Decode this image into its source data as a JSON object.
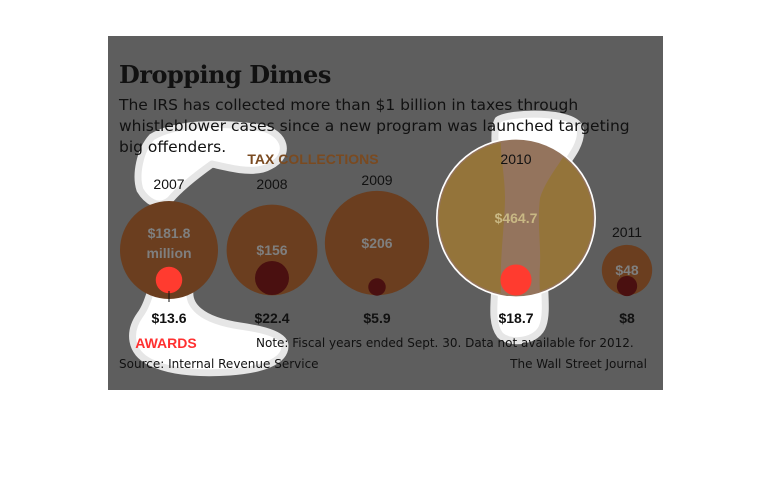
{
  "title": "Dropping Dimes",
  "subtitle": "The IRS has collected more than $1 billion in taxes through whistleblower cases since a new program was launched targeting big offenders.",
  "legend": {
    "tax_label": "TAX COLLECTIONS",
    "awards_label": "AWARDS"
  },
  "note": "Note: Fiscal years ended Sept. 30. Data not available for 2012.",
  "source": "Source: Internal Revenue Service",
  "credit": "The Wall Street Journal",
  "colors": {
    "panel": "#5e5e5e",
    "tax_bubble": "#6b3e1f",
    "award_dot": "#4a1010",
    "award_highlight": "#ff3b2f",
    "awards_label": "#ff3030",
    "tax_label": "#7a4a20",
    "highlight_glow": "#ffff80"
  },
  "chart_data": {
    "type": "bubble",
    "categories": [
      "2007",
      "2008",
      "2009",
      "2010",
      "2011"
    ],
    "series": [
      {
        "name": "TAX COLLECTIONS",
        "values": [
          181.8,
          156,
          206,
          464.7,
          48
        ],
        "labels": [
          "$181.8\nmillion",
          "$156",
          "$206",
          "$464.7",
          "$48"
        ]
      },
      {
        "name": "AWARDS",
        "values": [
          13.6,
          22.4,
          5.9,
          18.7,
          8
        ],
        "labels": [
          "$13.6",
          "$22.4",
          "$5.9",
          "$18.7",
          "$8"
        ]
      }
    ],
    "highlighted": [
      "2007",
      "2010"
    ]
  }
}
